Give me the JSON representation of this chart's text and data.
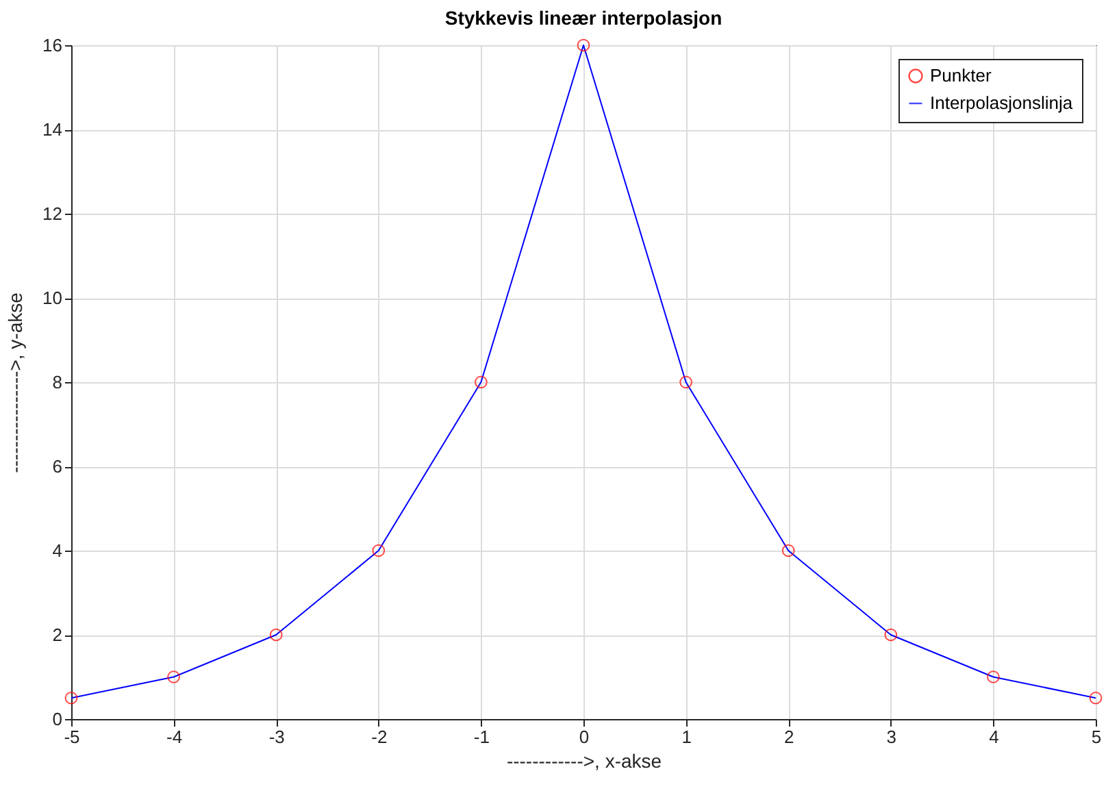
{
  "chart_data": {
    "type": "line",
    "title": "Stykkevis lineær interpolasjon",
    "xlabel": "------------>, x-akse",
    "ylabel": "---------------->, y-akse",
    "x": [
      -5,
      -4,
      -3,
      -2,
      -1,
      0,
      1,
      2,
      3,
      4,
      5
    ],
    "series": [
      {
        "name": "Punkter",
        "type": "scatter",
        "color": "#ff0000",
        "marker": "circle",
        "values": [
          0.5,
          1,
          2,
          4,
          8,
          16,
          8,
          4,
          2,
          1,
          0.5
        ]
      },
      {
        "name": "Interpolasjonslinja",
        "color": "#0000ff",
        "line_style": "solid",
        "values": [
          0.5,
          1,
          2,
          4,
          8,
          16,
          8,
          4,
          2,
          1,
          0.5
        ]
      }
    ],
    "xlim": [
      -5,
      5
    ],
    "xticks": [
      -5,
      -4,
      -3,
      -2,
      -1,
      0,
      1,
      2,
      3,
      4,
      5
    ],
    "ylim": [
      0,
      16
    ],
    "yticks": [
      0,
      2,
      4,
      6,
      8,
      10,
      12,
      14,
      16
    ],
    "grid": true,
    "legend": "top right"
  }
}
